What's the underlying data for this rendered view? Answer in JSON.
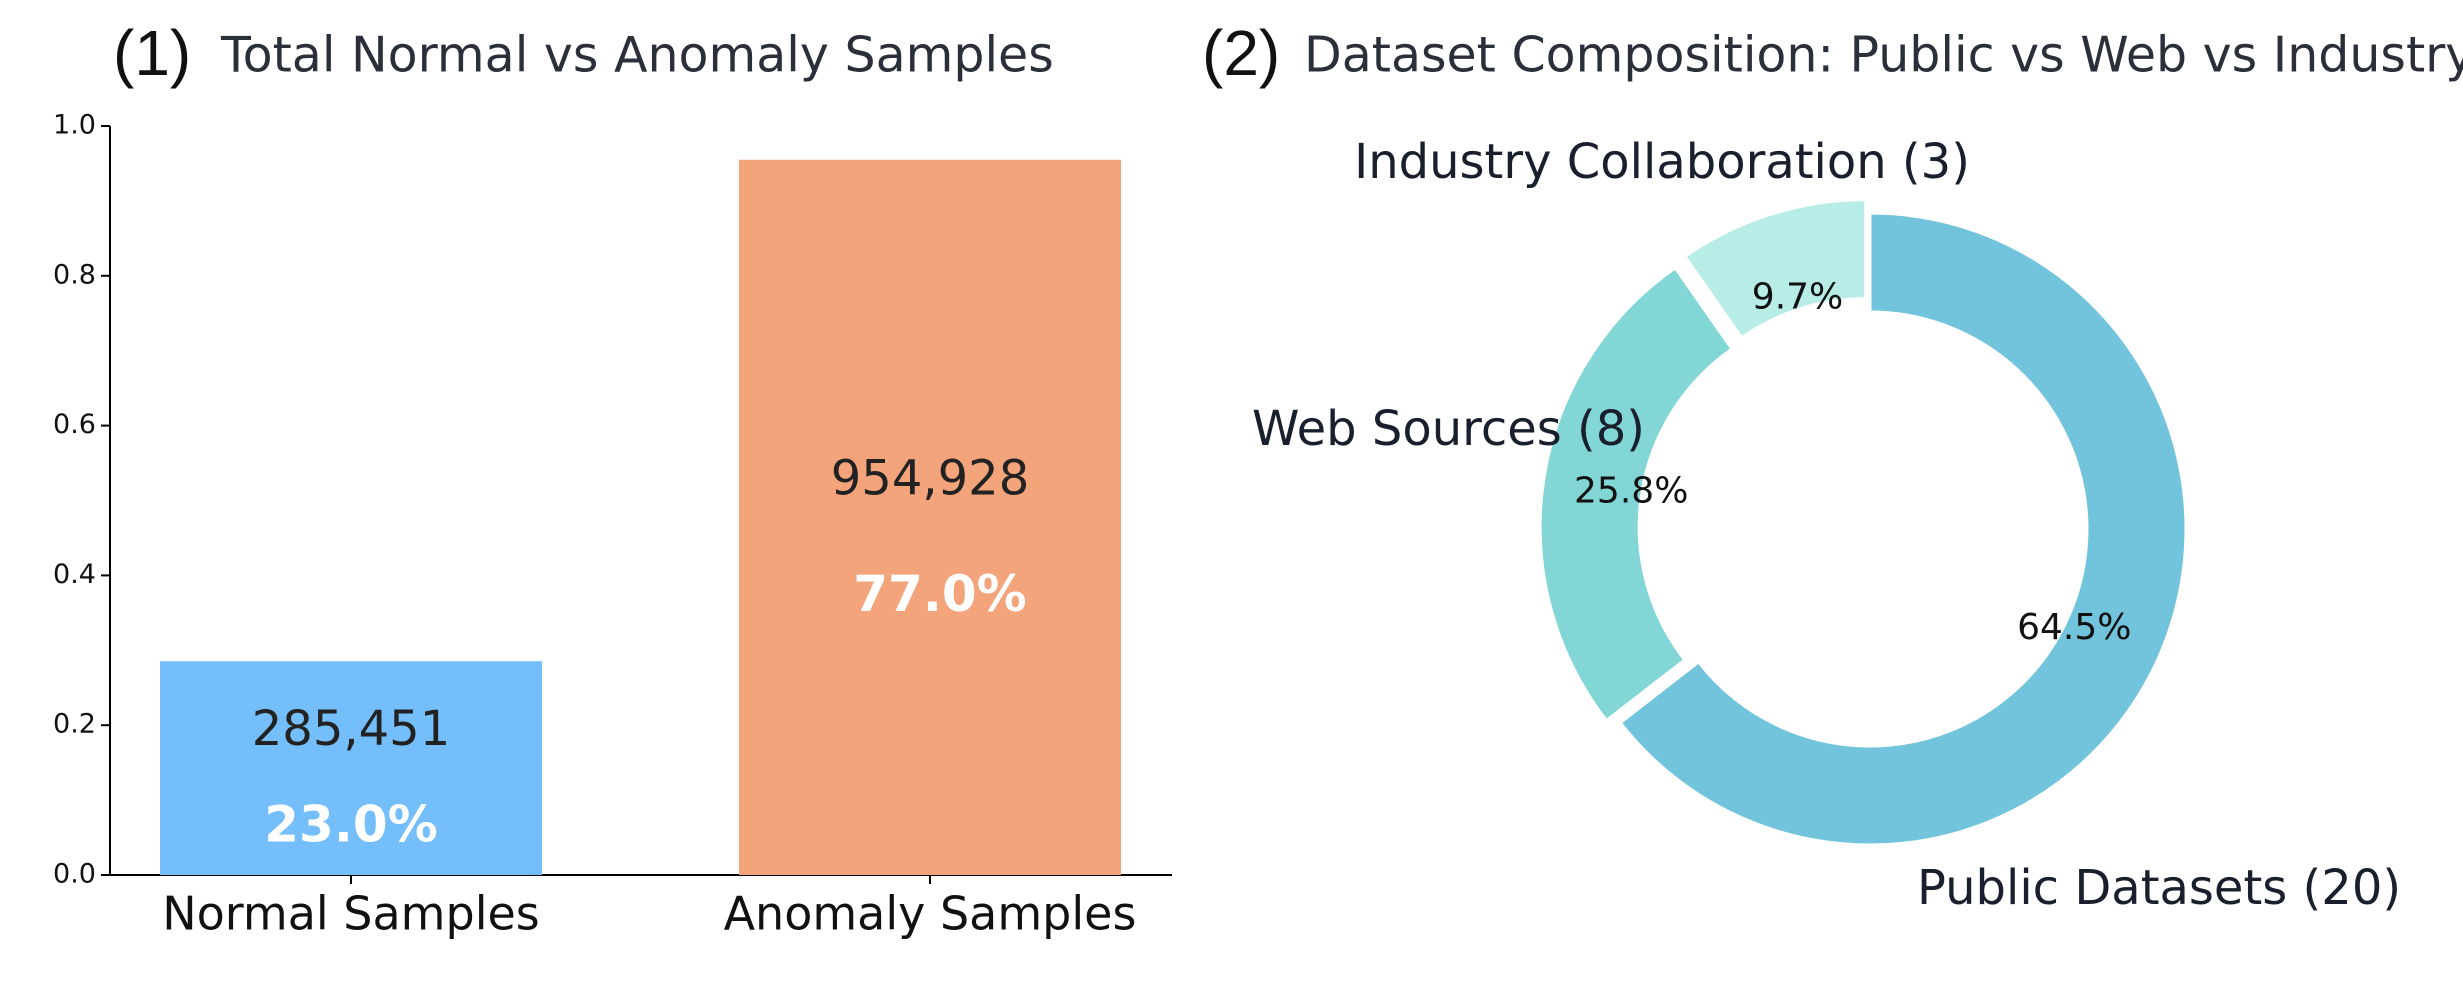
{
  "chart_data": [
    {
      "type": "bar",
      "panel": "(1)",
      "title": "Total Normal vs Anomaly Samples",
      "categories": [
        "Normal Samples",
        "Anomaly Samples"
      ],
      "values": [
        0.285451,
        0.954928
      ],
      "value_labels": [
        "285,451",
        "954,928"
      ],
      "share_labels": [
        "23.0%",
        "77.0%"
      ],
      "colors": [
        "#74bffb",
        "#f4a47b"
      ],
      "ylim": [
        0,
        1
      ],
      "yticks": [
        {
          "value": 0,
          "label": "0.0"
        },
        0.2,
        0.4,
        0.6,
        0.8,
        {
          "value": 1,
          "label": "1.0"
        }
      ],
      "grid": false
    },
    {
      "type": "donut",
      "panel": "(2)",
      "title": "Dataset Composition: Public vs Web vs Industry",
      "categories": [
        "Public Datasets (20)",
        "Web Sources (8)",
        "Industry Collaboration (3)"
      ],
      "values": [
        64.5,
        25.8,
        9.7
      ],
      "value_labels": [
        "64.5%",
        "25.8%",
        "9.7%"
      ],
      "colors": [
        "#72c3dc",
        "#82d6d6",
        "#b8ece6"
      ]
    }
  ]
}
